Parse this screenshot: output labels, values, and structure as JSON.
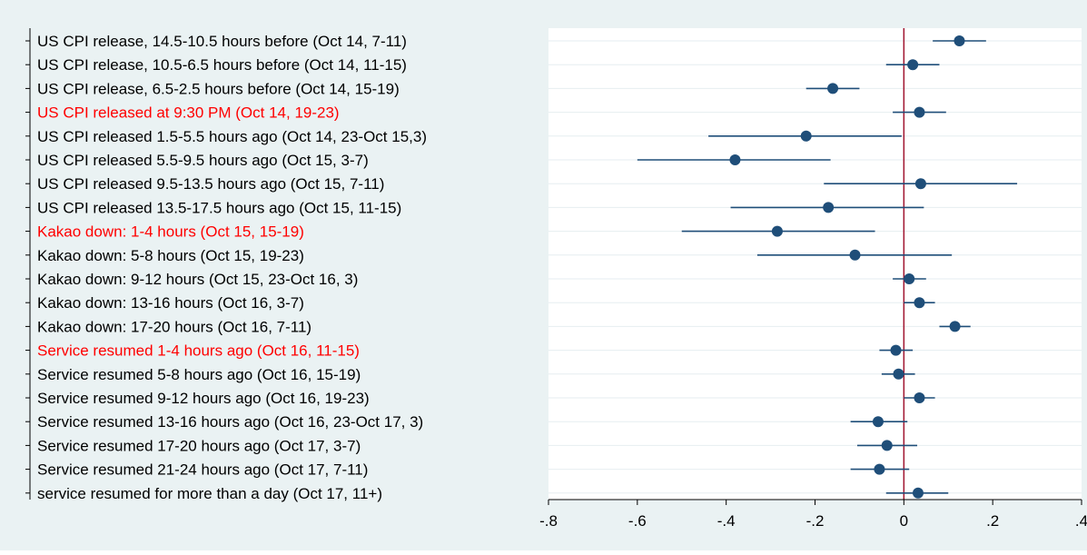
{
  "chart_data": {
    "type": "scatter",
    "subtype": "coefficient-plot",
    "title": "",
    "xlabel": "",
    "ylabel": "",
    "xlim": [
      -0.8,
      0.4
    ],
    "xticks": [
      -0.8,
      -0.6,
      -0.4,
      -0.2,
      0,
      0.2,
      0.4
    ],
    "xtick_labels": [
      "-.8",
      "-.6",
      "-.4",
      "-.2",
      "0",
      ".2",
      ".4"
    ],
    "reference_line": {
      "x": 0,
      "color": "#a0142f"
    },
    "grid": "horizontal",
    "colors": {
      "background": "#eaf2f3",
      "plot_area": "#ffffff",
      "marker": "#1f4e79",
      "highlight_label": "#ff0000",
      "label": "#000000"
    },
    "rows": [
      {
        "label": "US CPI release, 14.5-10.5 hours before (Oct 14, 7-11)",
        "coef": 0.125,
        "ci_low": 0.065,
        "ci_high": 0.185,
        "highlight": false
      },
      {
        "label": "US CPI release, 10.5-6.5 hours before (Oct 14, 11-15)",
        "coef": 0.02,
        "ci_low": -0.04,
        "ci_high": 0.08,
        "highlight": false
      },
      {
        "label": "US CPI release, 6.5-2.5 hours before (Oct 14, 15-19)",
        "coef": -0.16,
        "ci_low": -0.22,
        "ci_high": -0.1,
        "highlight": false
      },
      {
        "label": "US CPI released at 9:30 PM (Oct 14, 19-23)",
        "coef": 0.035,
        "ci_low": -0.025,
        "ci_high": 0.095,
        "highlight": true
      },
      {
        "label": "US CPI released 1.5-5.5 hours ago (Oct 14, 23-Oct 15,3)",
        "coef": -0.22,
        "ci_low": -0.44,
        "ci_high": -0.005,
        "highlight": false
      },
      {
        "label": "US CPI released 5.5-9.5 hours ago (Oct 15, 3-7)",
        "coef": -0.38,
        "ci_low": -0.6,
        "ci_high": -0.165,
        "highlight": false
      },
      {
        "label": "US CPI released 9.5-13.5 hours ago (Oct 15, 7-11)",
        "coef": 0.038,
        "ci_low": -0.18,
        "ci_high": 0.255,
        "highlight": false
      },
      {
        "label": "US CPI released 13.5-17.5 hours ago (Oct 15, 11-15)",
        "coef": -0.17,
        "ci_low": -0.39,
        "ci_high": 0.045,
        "highlight": false
      },
      {
        "label": "Kakao down: 1-4 hours (Oct 15, 15-19)",
        "coef": -0.285,
        "ci_low": -0.5,
        "ci_high": -0.065,
        "highlight": true
      },
      {
        "label": "Kakao down: 5-8 hours (Oct 15, 19-23)",
        "coef": -0.11,
        "ci_low": -0.33,
        "ci_high": 0.108,
        "highlight": false
      },
      {
        "label": "Kakao down: 9-12 hours (Oct 15, 23-Oct 16, 3)",
        "coef": 0.012,
        "ci_low": -0.025,
        "ci_high": 0.05,
        "highlight": false
      },
      {
        "label": "Kakao down: 13-16 hours (Oct 16, 3-7)",
        "coef": 0.035,
        "ci_low": 0.0,
        "ci_high": 0.07,
        "highlight": false
      },
      {
        "label": "Kakao down: 17-20 hours (Oct 16, 7-11)",
        "coef": 0.115,
        "ci_low": 0.08,
        "ci_high": 0.15,
        "highlight": false
      },
      {
        "label": "Service resumed 1-4 hours ago (Oct 16, 11-15)",
        "coef": -0.018,
        "ci_low": -0.055,
        "ci_high": 0.02,
        "highlight": true
      },
      {
        "label": "Service resumed 5-8 hours ago (Oct 16, 15-19)",
        "coef": -0.012,
        "ci_low": -0.05,
        "ci_high": 0.025,
        "highlight": false
      },
      {
        "label": "Service resumed 9-12 hours ago (Oct 16, 19-23)",
        "coef": 0.035,
        "ci_low": 0.0,
        "ci_high": 0.07,
        "highlight": false
      },
      {
        "label": "Service resumed 13-16 hours ago (Oct 16, 23-Oct 17, 3)",
        "coef": -0.058,
        "ci_low": -0.12,
        "ci_high": 0.008,
        "highlight": false
      },
      {
        "label": "Service resumed 17-20 hours ago (Oct 17, 3-7)",
        "coef": -0.038,
        "ci_low": -0.105,
        "ci_high": 0.03,
        "highlight": false
      },
      {
        "label": "Service resumed 21-24 hours ago (Oct 17, 7-11)",
        "coef": -0.055,
        "ci_low": -0.12,
        "ci_high": 0.012,
        "highlight": false
      },
      {
        "label": "service resumed for more than a day (Oct 17, 11+)",
        "coef": 0.032,
        "ci_low": -0.04,
        "ci_high": 0.1,
        "highlight": false
      }
    ]
  }
}
